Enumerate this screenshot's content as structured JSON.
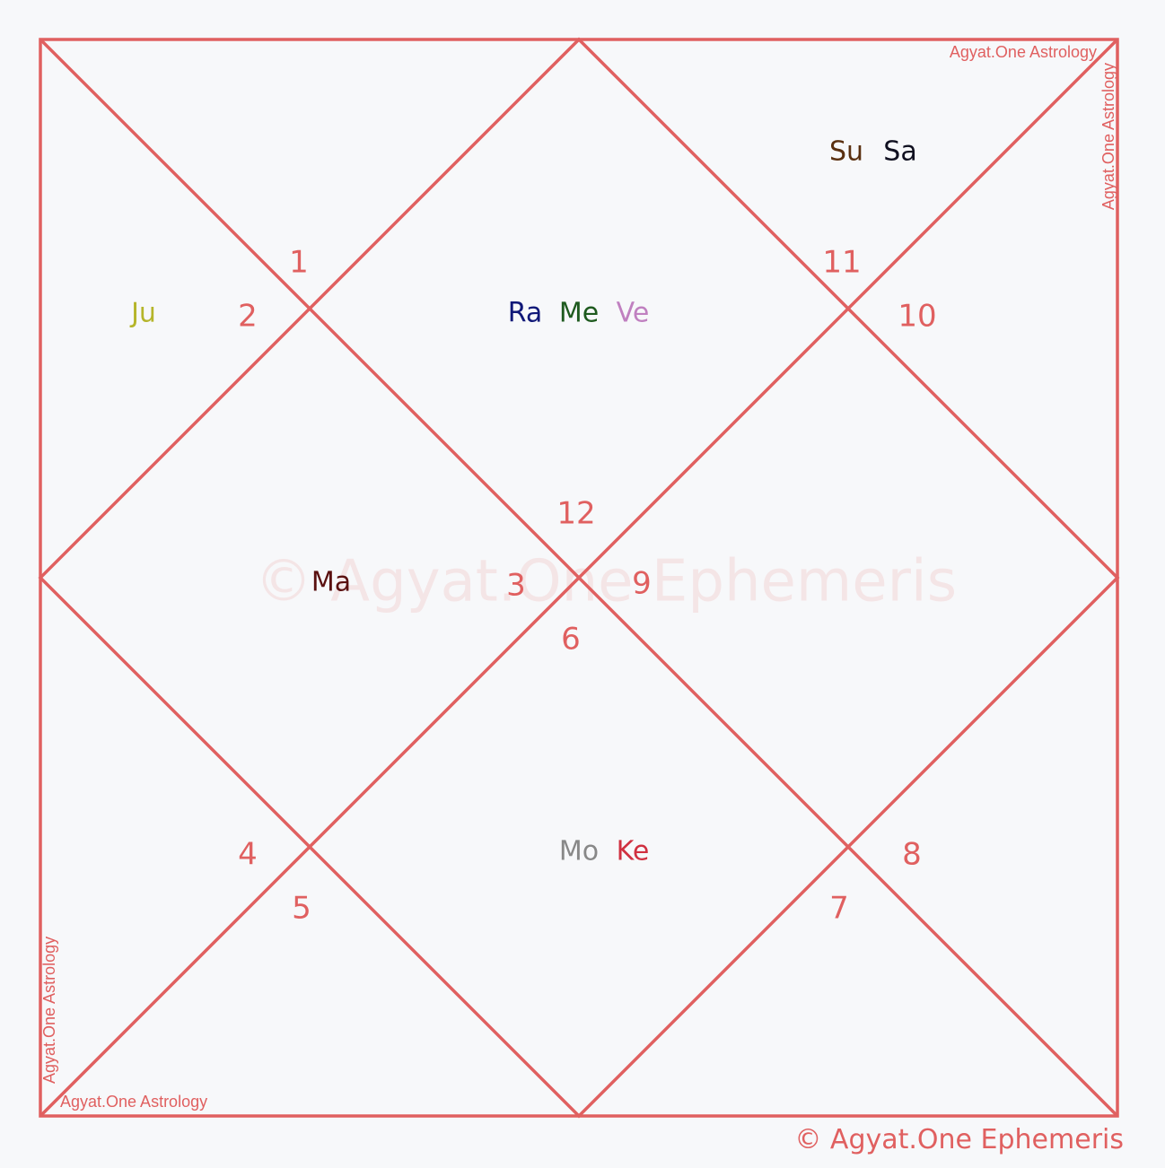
{
  "colors": {
    "line": "#e06060",
    "background": "#f7f8fa",
    "house_number": "#e06060"
  },
  "watermark": "© Agyat.One Ephemeris",
  "copyright": "© Agyat.One Ephemeris",
  "brand_marks": {
    "top_right_horizontal": "Agyat.One Astrology",
    "top_right_vertical": "Agyat.One Astrology",
    "bottom_left_vertical": "Agyat.One Astrology",
    "bottom_left_horizontal": "Agyat.One Astrology"
  },
  "houses": [
    {
      "house": 1,
      "number": "1",
      "planets": []
    },
    {
      "house": 2,
      "number": "2",
      "planets": [
        {
          "abbr": "Ju",
          "color": "#b5b52a"
        }
      ]
    },
    {
      "house": 3,
      "number": "3",
      "planets": [
        {
          "abbr": "Ma",
          "color": "#5a1010"
        }
      ]
    },
    {
      "house": 4,
      "number": "4",
      "planets": []
    },
    {
      "house": 5,
      "number": "5",
      "planets": []
    },
    {
      "house": 6,
      "number": "6",
      "planets": [
        {
          "abbr": "Mo",
          "color": "#888888"
        },
        {
          "abbr": "Ke",
          "color": "#d03040"
        }
      ]
    },
    {
      "house": 7,
      "number": "7",
      "planets": []
    },
    {
      "house": 8,
      "number": "8",
      "planets": []
    },
    {
      "house": 9,
      "number": "9",
      "planets": []
    },
    {
      "house": 10,
      "number": "10",
      "planets": []
    },
    {
      "house": 11,
      "number": "11",
      "planets": [
        {
          "abbr": "Su",
          "color": "#5a3010"
        },
        {
          "abbr": "Sa",
          "color": "#101020"
        }
      ]
    },
    {
      "house": 12,
      "number": "12",
      "planets": [
        {
          "abbr": "Ra",
          "color": "#101878"
        },
        {
          "abbr": "Me",
          "color": "#1e5a1e"
        },
        {
          "abbr": "Ve",
          "color": "#c080c0"
        }
      ]
    }
  ]
}
